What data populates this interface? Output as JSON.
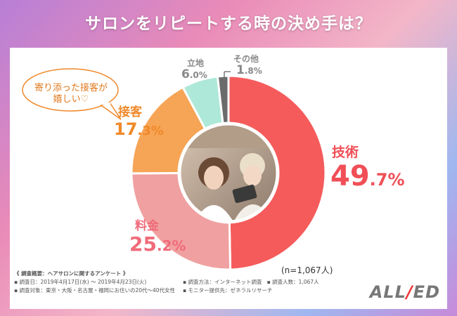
{
  "title": "サロンをリピートする時の決め手は？",
  "chart_data": {
    "type": "pie",
    "categories": [
      "技術",
      "料金",
      "接客",
      "立地",
      "その他"
    ],
    "values": [
      49.7,
      25.2,
      17.3,
      6.0,
      1.8
    ],
    "colors": [
      "#f55b5b",
      "#f0a0a0",
      "#f6a455",
      "#aee8d8",
      "#6b6b6b"
    ],
    "value_labels": [
      {
        "int": "49",
        "dec": ".7",
        "pct": "%"
      },
      {
        "int": "25",
        "dec": ".2",
        "pct": "%"
      },
      {
        "int": "17",
        "dec": ".3",
        "pct": "%"
      },
      {
        "int": "6",
        "dec": ".0",
        "pct": "%"
      },
      {
        "int": "1",
        "dec": ".8",
        "pct": "%"
      }
    ],
    "label_colors": [
      "#f04f57",
      "#f06b7a",
      "#f0892a",
      "#888888",
      "#888888"
    ]
  },
  "sample_size": "(n=1,067人)",
  "callout": "寄り添った接客が嬉しい♡",
  "survey": {
    "heading": "《 調査概要：ヘアサロンに関するアンケート 》",
    "date": "▪ 調査日：2019年4月17日(水) ～ 2019年4月23日(火)",
    "target": "▪ 調査対象：東京・大阪・名古屋・福岡にお住いの20代～40代女性",
    "method": "▪ 調査方法：インターネット調査",
    "count": "▪ 調査人数：1,067人",
    "provider": "▪ モニター提供先：ゼネラルリサーチ"
  },
  "logo": {
    "left": "ALL",
    "bar": "/",
    "right": "ED"
  }
}
